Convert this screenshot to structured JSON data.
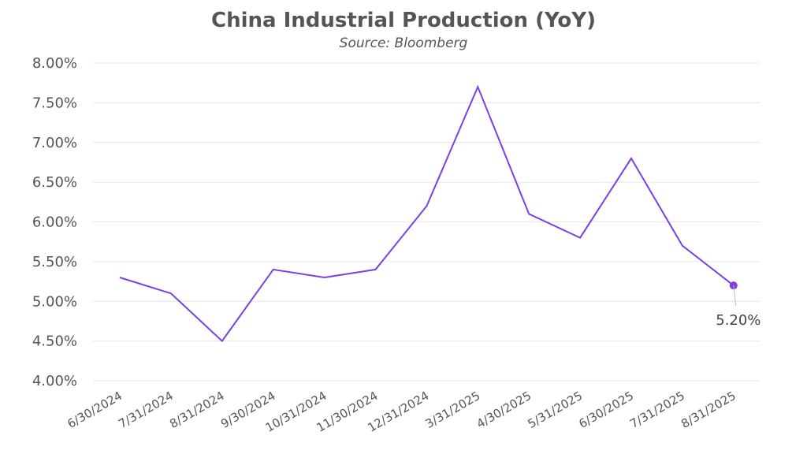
{
  "chart_data": {
    "type": "line",
    "title": "China Industrial Production (YoY)",
    "subtitle": "Source: Bloomberg",
    "xlabel": "",
    "ylabel": "",
    "categories": [
      "6/30/2024",
      "7/31/2024",
      "8/31/2024",
      "9/30/2024",
      "10/31/2024",
      "11/30/2024",
      "12/31/2024",
      "3/31/2025",
      "4/30/2025",
      "5/31/2025",
      "6/30/2025",
      "7/31/2025",
      "8/31/2025"
    ],
    "series": [
      {
        "values": [
          5.3,
          5.1,
          4.5,
          5.4,
          5.3,
          5.4,
          6.2,
          7.7,
          6.1,
          5.8,
          6.8,
          5.7,
          5.2
        ]
      }
    ],
    "ylim": [
      4.0,
      8.0
    ],
    "yticks": [
      "4.00%",
      "4.50%",
      "5.00%",
      "5.50%",
      "6.00%",
      "6.50%",
      "7.00%",
      "7.50%",
      "8.00%"
    ],
    "ytick_values": [
      4.0,
      4.5,
      5.0,
      5.5,
      6.0,
      6.5,
      7.0,
      7.5,
      8.0
    ],
    "grid": true,
    "last_point_label": "5.20%",
    "colors": {
      "line": "#7b3fe4",
      "grid": "#e6e6e6",
      "text": "#555555"
    }
  }
}
